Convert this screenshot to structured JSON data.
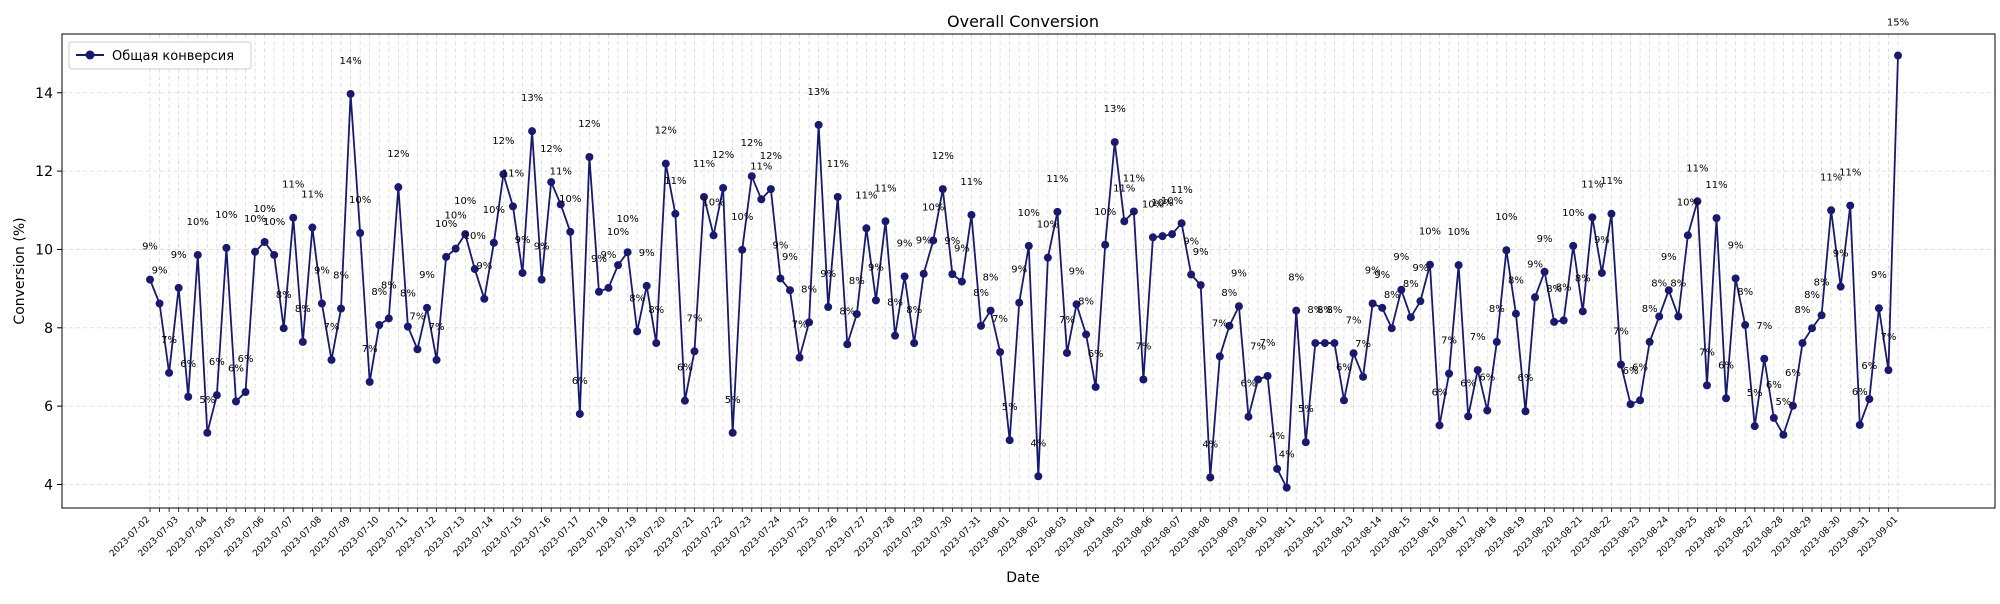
{
  "chart_data": {
    "type": "line",
    "title": "Overall Conversion",
    "xlabel": "Date",
    "ylabel": "Conversion (%)",
    "ylim": [
      3.4,
      15.5
    ],
    "yticks": [
      4,
      6,
      8,
      10,
      12,
      14
    ],
    "grid": true,
    "legend_placement": "top-left",
    "x_start": "2023-07-02",
    "x_end": "2023-09-01",
    "series": [
      {
        "name": "Общая конверсия",
        "color": "#191970",
        "marker": "circle",
        "values": [
          9.23,
          8.62,
          6.85,
          9.02,
          6.24,
          9.86,
          5.32,
          6.28,
          10.04,
          6.12,
          6.36,
          9.94,
          10.19,
          9.86,
          7.99,
          10.81,
          7.64,
          10.56,
          8.62,
          7.18,
          8.49,
          13.97,
          10.42,
          6.62,
          8.07,
          8.24,
          11.59,
          8.03,
          7.45,
          8.51,
          7.18,
          9.81,
          10.02,
          10.39,
          9.5,
          8.74,
          10.17,
          11.92,
          11.1,
          9.4,
          13.02,
          9.23,
          11.72,
          11.15,
          10.45,
          5.8,
          12.36,
          8.92,
          9.02,
          9.6,
          9.93,
          7.91,
          9.07,
          7.61,
          12.19,
          10.91,
          6.14,
          7.4,
          11.34,
          10.36,
          11.57,
          5.32,
          9.99,
          11.87,
          11.28,
          11.54,
          9.26,
          8.96,
          7.24,
          8.14,
          13.18,
          8.53,
          11.34,
          7.58,
          8.35,
          10.54,
          8.7,
          10.72,
          7.8,
          9.31,
          7.61,
          9.38,
          10.23,
          11.54,
          9.37,
          9.18,
          10.88,
          8.05,
          8.44,
          7.38,
          5.13,
          8.64,
          10.09,
          4.21,
          9.79,
          10.96,
          7.36,
          8.6,
          7.83,
          6.49,
          10.12,
          12.74,
          10.72,
          10.97,
          6.68,
          10.31,
          10.34,
          10.39,
          10.67,
          9.36,
          9.09,
          4.18,
          7.27,
          8.05,
          8.55,
          5.73,
          6.68,
          6.77,
          4.4,
          3.92,
          8.44,
          5.08,
          7.61,
          7.61,
          7.61,
          6.15,
          7.35,
          6.75,
          8.62,
          8.51,
          7.99,
          8.97,
          8.27,
          8.68,
          9.61,
          5.51,
          6.83,
          9.6,
          5.74,
          6.92,
          5.89,
          7.64,
          9.98,
          8.36,
          5.87,
          8.78,
          9.43,
          8.15,
          8.19,
          10.09,
          8.42,
          10.82,
          9.4,
          10.91,
          7.06,
          6.05,
          6.15,
          7.64,
          8.29,
          8.96,
          8.29,
          10.36,
          11.23,
          6.53,
          10.8,
          6.2,
          9.26,
          8.07,
          5.49,
          7.21,
          5.7,
          5.27,
          6.01,
          7.61,
          7.99,
          8.32,
          11.0,
          9.05,
          11.12,
          5.52,
          6.18,
          8.5,
          6.92,
          14.95
        ]
      }
    ],
    "x_tick_labels": [
      "2023-07-02",
      "2023-07-03",
      "2023-07-04",
      "2023-07-05",
      "2023-07-06",
      "2023-07-07",
      "2023-07-08",
      "2023-07-09",
      "2023-07-10",
      "2023-07-11",
      "2023-07-12",
      "2023-07-13",
      "2023-07-14",
      "2023-07-15",
      "2023-07-16",
      "2023-07-17",
      "2023-07-18",
      "2023-07-19",
      "2023-07-20",
      "2023-07-21",
      "2023-07-22",
      "2023-07-23",
      "2023-07-24",
      "2023-07-25",
      "2023-07-26",
      "2023-07-27",
      "2023-07-28",
      "2023-07-29",
      "2023-07-30",
      "2023-07-31",
      "2023-08-01",
      "2023-08-02",
      "2023-08-03",
      "2023-08-04",
      "2023-08-05",
      "2023-08-06",
      "2023-08-07",
      "2023-08-08",
      "2023-08-09",
      "2023-08-10",
      "2023-08-11",
      "2023-08-12",
      "2023-08-13",
      "2023-08-14",
      "2023-08-15",
      "2023-08-16",
      "2023-08-17",
      "2023-08-18",
      "2023-08-19",
      "2023-08-20",
      "2023-08-21",
      "2023-08-22",
      "2023-08-23",
      "2023-08-24",
      "2023-08-25",
      "2023-08-26",
      "2023-08-27",
      "2023-08-28",
      "2023-08-29",
      "2023-08-30",
      "2023-08-31",
      "2023-09-01"
    ]
  }
}
